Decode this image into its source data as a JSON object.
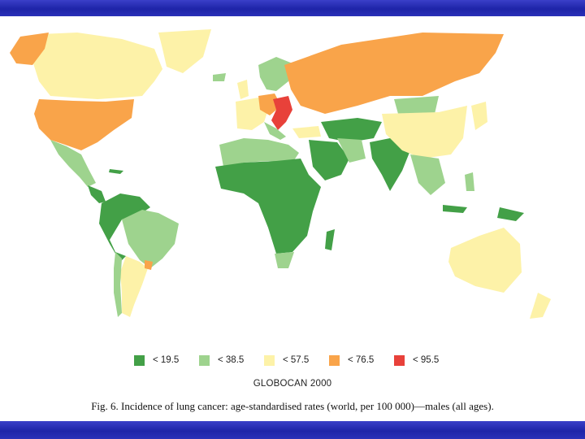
{
  "legend": {
    "items": [
      {
        "label": "< 19.5",
        "color": "#43a047"
      },
      {
        "label": "< 38.5",
        "color": "#9ed38e"
      },
      {
        "label": "< 57.5",
        "color": "#fdf2a8"
      },
      {
        "label": "< 76.5",
        "color": "#f9a44a"
      },
      {
        "label": "< 95.5",
        "color": "#e8413a"
      }
    ]
  },
  "source": "GLOBOCAN 2000",
  "caption": "Fig. 6.  Incidence of lung cancer: age-standardised rates (world, per 100 000)—males (all ages).",
  "colors": {
    "band": "#2a30b8",
    "background": "#ffffff"
  }
}
